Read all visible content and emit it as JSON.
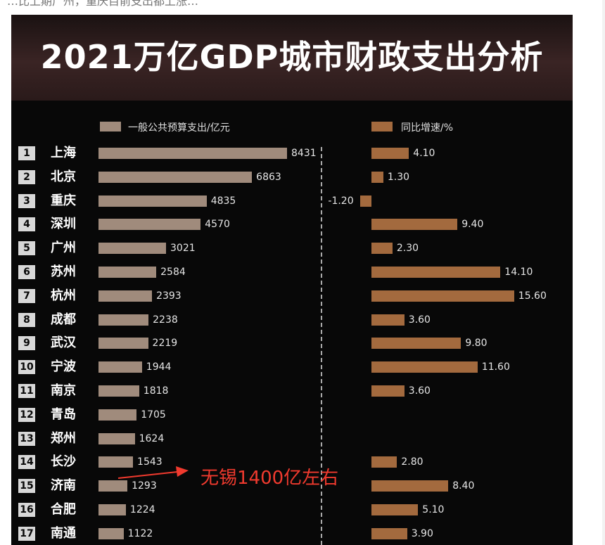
{
  "page_top_text": "…比上期广州，重庆目前支出都上涨…",
  "chart_data": {
    "type": "bar",
    "title": "2021万亿GDP城市财政支出分析",
    "legend": [
      "一般公共预算支出/亿元",
      "同比增速/%"
    ],
    "colors": {
      "expenditure": "#a08b7c",
      "growth": "#a36a3e",
      "annotation": "#f03a2e"
    },
    "categories": [
      "上海",
      "北京",
      "重庆",
      "深圳",
      "广州",
      "苏州",
      "杭州",
      "成都",
      "武汉",
      "宁波",
      "南京",
      "青岛",
      "郑州",
      "长沙",
      "济南",
      "合肥",
      "南通"
    ],
    "ranks": [
      "1",
      "2",
      "3",
      "4",
      "5",
      "6",
      "7",
      "8",
      "9",
      "10",
      "11",
      "12",
      "13",
      "14",
      "15",
      "16",
      "17"
    ],
    "series": [
      {
        "name": "一般公共预算支出/亿元",
        "values": [
          8431,
          6863,
          4835,
          4570,
          3021,
          2584,
          2393,
          2238,
          2219,
          1944,
          1818,
          1705,
          1624,
          1543,
          1293,
          1224,
          1122
        ]
      },
      {
        "name": "同比增速/%",
        "values": [
          4.1,
          1.3,
          -1.2,
          9.4,
          2.3,
          14.1,
          15.6,
          3.6,
          9.8,
          11.6,
          3.6,
          null,
          null,
          2.8,
          8.4,
          5.1,
          3.9
        ]
      }
    ],
    "value_labels": [
      "8431",
      "6863",
      "4835",
      "4570",
      "3021",
      "2584",
      "2393",
      "2238",
      "2219",
      "1944",
      "1818",
      "1705",
      "1624",
      "1543",
      "1293",
      "1224",
      "1122"
    ],
    "growth_labels": [
      "4.10",
      "1.30",
      "-1.20",
      "9.40",
      "2.30",
      "14.10",
      "15.60",
      "3.60",
      "9.80",
      "11.60",
      "3.60",
      "",
      "",
      "2.80",
      "8.40",
      "5.10",
      "3.90"
    ],
    "annotation": "无锡1400亿左右"
  }
}
